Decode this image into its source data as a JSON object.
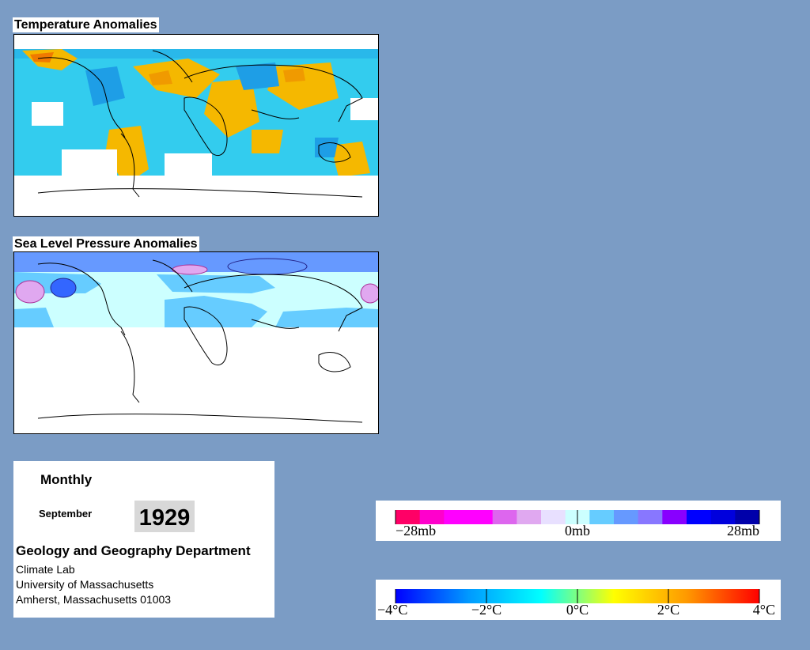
{
  "panels": {
    "temperature": {
      "title": "Temperature Anomalies"
    },
    "pressure": {
      "title": "Sea Level Pressure Anomalies"
    }
  },
  "info": {
    "period": "Monthly",
    "month": "September",
    "year": "1929",
    "department": "Geology and Geography Department",
    "lab": "Climate Lab",
    "university": "University of Massachusetts",
    "address": "Amherst, Massachusetts 01003"
  },
  "legends": {
    "pressure": {
      "labels": [
        "−28mb",
        "0mb",
        "28mb"
      ],
      "colors": [
        "#ff0066",
        "#ff00cc",
        "#ff00ff",
        "#ff00ff",
        "#dd66ee",
        "#e0a8f0",
        "#e8e0ff",
        "#ccffff",
        "#66ccff",
        "#6699ff",
        "#8877ff",
        "#8800ff",
        "#0000ff",
        "#0000dd",
        "#0000aa"
      ]
    },
    "temperature": {
      "labels": [
        "−4°C",
        "−2°C",
        "0°C",
        "2°C",
        "4°C"
      ],
      "stops": [
        "#0000ff",
        "#0099ff",
        "#00ffff",
        "#ffff00",
        "#ff9900",
        "#ff0000"
      ]
    }
  },
  "colors": {
    "background": "#7b9cc5",
    "warm_anomaly": "#f5b800",
    "cool_anomaly": "#33ccee"
  }
}
